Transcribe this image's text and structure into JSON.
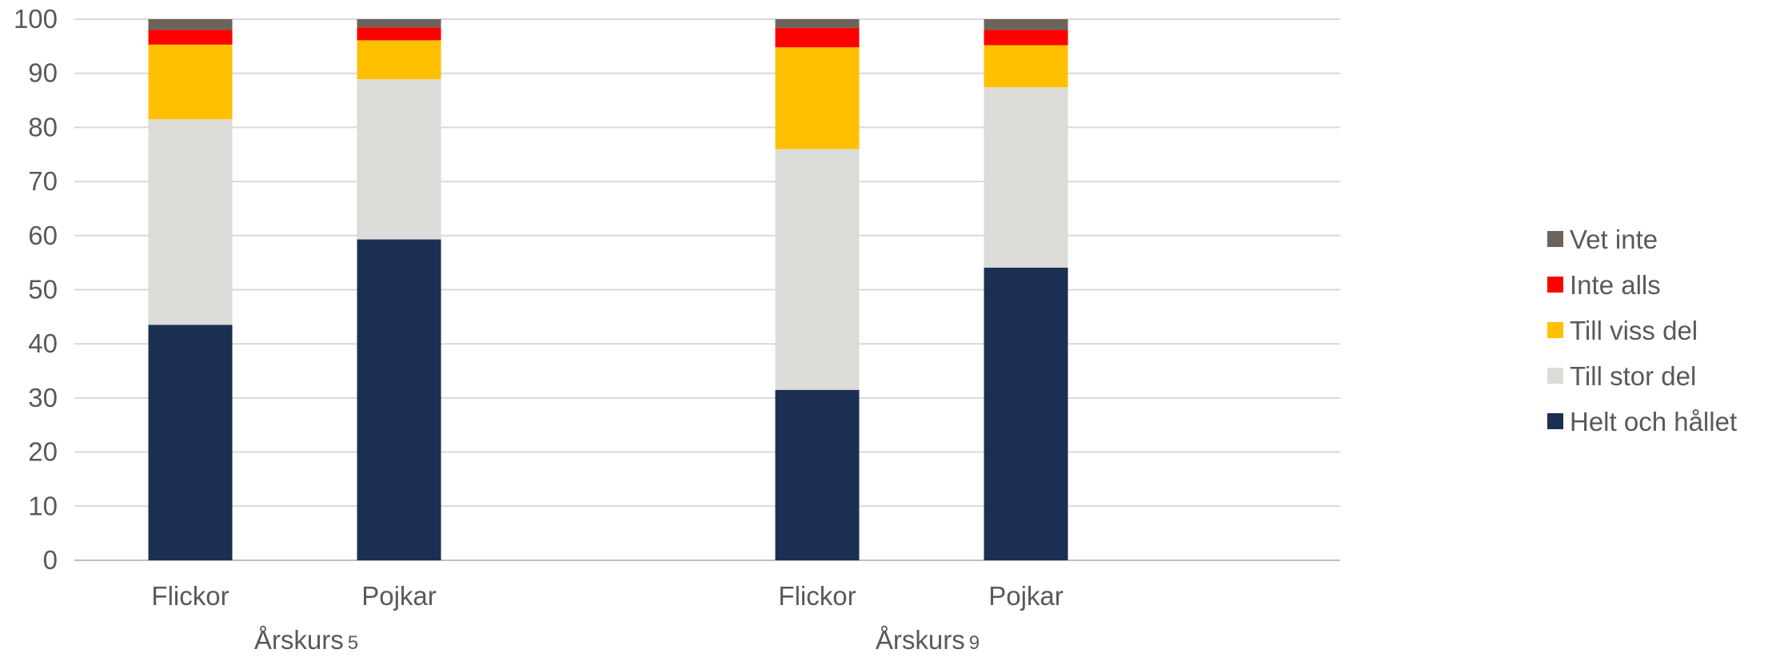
{
  "chart_data": {
    "type": "bar",
    "stacked": true,
    "ylim": [
      0,
      100
    ],
    "yticks": [
      0,
      10,
      20,
      30,
      40,
      50,
      60,
      70,
      80,
      90,
      100
    ],
    "grid": true,
    "legend_position": "right",
    "groups": [
      {
        "label": "Årskurs",
        "label_suffix": "5",
        "categories": [
          "Flickor",
          "Pojkar"
        ]
      },
      {
        "label": "Årskurs",
        "label_suffix": "9",
        "categories": [
          "Flickor",
          "Pojkar"
        ]
      }
    ],
    "series": [
      {
        "name": "Helt och hållet",
        "color": "#1b2f52",
        "values": [
          43.5,
          59.3,
          31.5,
          54.1
        ]
      },
      {
        "name": "Till stor del",
        "color": "#dddbd8",
        "values": [
          38.0,
          29.6,
          44.5,
          33.3
        ]
      },
      {
        "name": "Till viss del",
        "color": "#ffc000",
        "values": [
          13.8,
          7.2,
          18.8,
          7.8
        ]
      },
      {
        "name": "Inte alls",
        "color": "#ff0000",
        "values": [
          2.7,
          2.4,
          3.6,
          2.8
        ]
      },
      {
        "name": "Vet inte",
        "color": "#6c635a",
        "values": [
          2.0,
          1.5,
          1.6,
          2.0
        ]
      }
    ]
  }
}
